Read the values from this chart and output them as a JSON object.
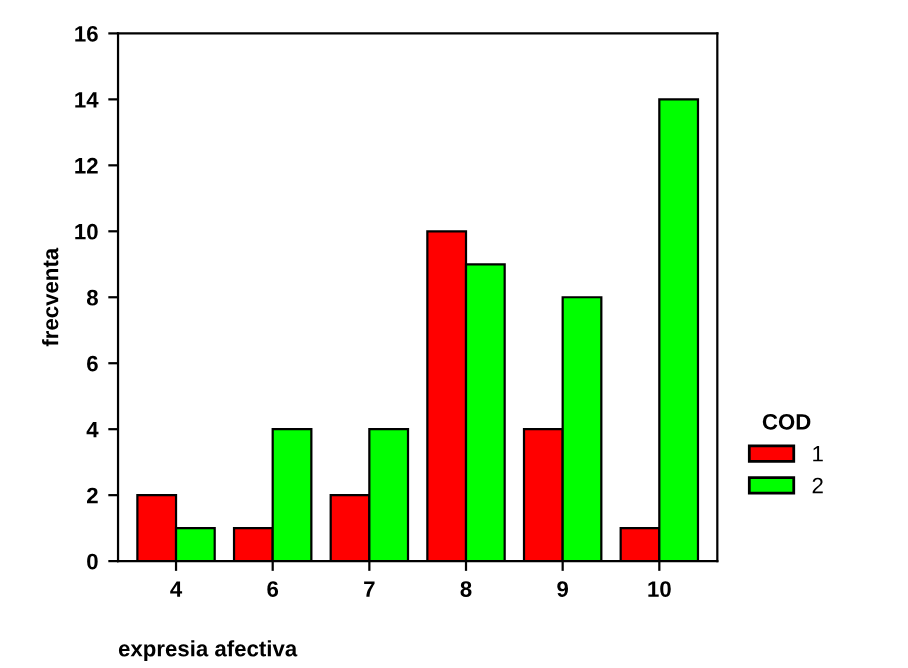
{
  "chart_data": {
    "type": "bar",
    "xlabel": "expresia afectiva",
    "ylabel": "frecventa",
    "legend_title": "COD",
    "categories": [
      "4",
      "6",
      "7",
      "8",
      "9",
      "10"
    ],
    "series": [
      {
        "name": "1",
        "color": "#ff0000",
        "values": [
          2,
          1,
          2,
          10,
          4,
          1
        ]
      },
      {
        "name": "2",
        "color": "#00ff00",
        "values": [
          1,
          4,
          4,
          9,
          8,
          14
        ]
      }
    ],
    "ylim": [
      0,
      16
    ],
    "yticks": [
      0,
      2,
      4,
      6,
      8,
      10,
      12,
      14,
      16
    ],
    "grid": false,
    "legend": "right"
  }
}
